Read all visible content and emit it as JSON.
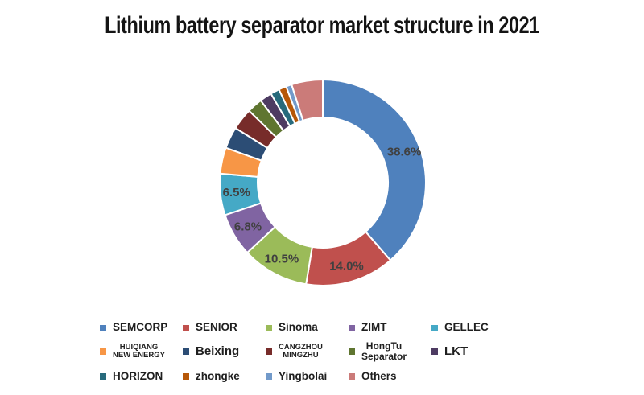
{
  "title": "Lithium battery separator market structure in 2021",
  "colors": {
    "background": "#ffffff",
    "title_text": "#141414",
    "percent_label_text": "#404040",
    "legend_text": "#1f1f1f",
    "slice_border": "#ffffff"
  },
  "chart_data": {
    "type": "pie",
    "subtype": "donut",
    "title": "Lithium battery separator market structure in 2021",
    "units": "%",
    "start_angle_deg": 0,
    "direction": "clockwise",
    "inner_radius_ratio": 0.63,
    "legend_position": "bottom",
    "slices": [
      {
        "name": "SEMCORP",
        "value": 38.6,
        "label": "38.6%",
        "color": "#4F81BD",
        "legend_lines": [
          "SEMCORP"
        ],
        "legend_size": "md"
      },
      {
        "name": "SENIOR",
        "value": 14.0,
        "label": "14.0%",
        "color": "#C0504D",
        "legend_lines": [
          "SENIOR"
        ],
        "legend_size": "md"
      },
      {
        "name": "Sinoma",
        "value": 10.5,
        "label": "10.5%",
        "color": "#9BBB59",
        "legend_lines": [
          "Sinoma"
        ],
        "legend_size": "md"
      },
      {
        "name": "ZIMT",
        "value": 6.8,
        "label": "6.8%",
        "color": "#8064A2",
        "legend_lines": [
          "ZIMT"
        ],
        "legend_size": "md"
      },
      {
        "name": "GELLEC",
        "value": 6.5,
        "label": "6.5%",
        "color": "#45A9C6",
        "legend_lines": [
          "GELLEC"
        ],
        "legend_size": "md"
      },
      {
        "name": "HUIQIANG NEW ENERGY",
        "value": 4.1,
        "label": null,
        "color": "#F79646",
        "legend_lines": [
          "HUIQIANG",
          "NEW ENERGY"
        ],
        "legend_size": "xs"
      },
      {
        "name": "Beixing",
        "value": 3.4,
        "label": null,
        "color": "#2C4D75",
        "legend_lines": [
          "Beixing"
        ],
        "legend_size": "lg"
      },
      {
        "name": "CANGZHOU MINGZHU",
        "value": 3.4,
        "label": null,
        "color": "#772C2A",
        "legend_lines": [
          "CANGZHOU",
          "MINGZHU"
        ],
        "legend_size": "xs"
      },
      {
        "name": "HongTu Separator",
        "value": 2.4,
        "label": null,
        "color": "#5F7530",
        "legend_lines": [
          "HongTu",
          "Separator"
        ],
        "legend_size": "sm"
      },
      {
        "name": "LKT",
        "value": 1.9,
        "label": null,
        "color": "#4D3B62",
        "legend_lines": [
          "LKT"
        ],
        "legend_size": "lg"
      },
      {
        "name": "HORIZON",
        "value": 1.4,
        "label": null,
        "color": "#276A7C",
        "legend_lines": [
          "HORIZON"
        ],
        "legend_size": "md"
      },
      {
        "name": "zhongke",
        "value": 1.2,
        "label": null,
        "color": "#B65708",
        "legend_lines": [
          "zhongke"
        ],
        "legend_size": "md"
      },
      {
        "name": "Yingbolai",
        "value": 0.9,
        "label": null,
        "color": "#729ACA",
        "legend_lines": [
          "Yingbolai"
        ],
        "legend_size": "md"
      },
      {
        "name": "Others",
        "value": 4.9,
        "label": null,
        "color": "#CB7B79",
        "legend_lines": [
          "Others"
        ],
        "legend_size": "md"
      }
    ],
    "legend_rows": [
      5,
      5,
      4
    ]
  }
}
